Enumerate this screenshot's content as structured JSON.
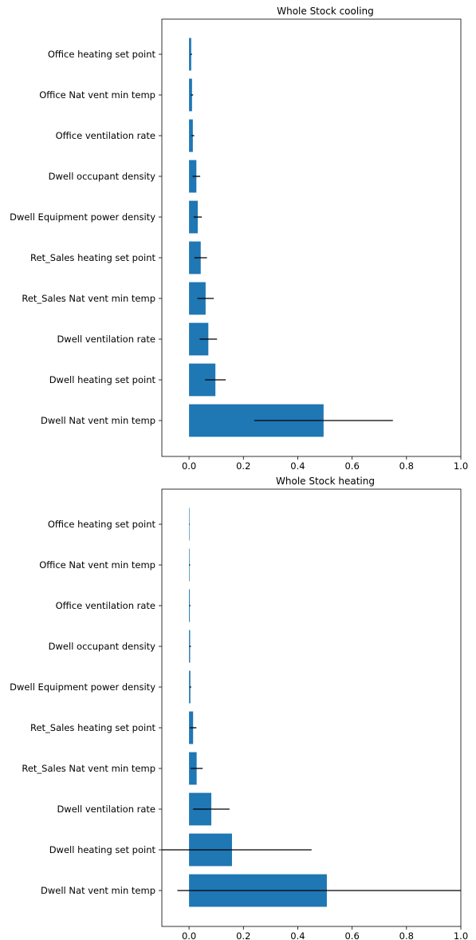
{
  "chart_data": [
    {
      "type": "bar",
      "orientation": "horizontal",
      "title": "Whole Stock cooling",
      "xlabel": "",
      "ylabel": "",
      "xlim": [
        -0.1,
        1.0
      ],
      "xticks": [
        "0.0",
        "0.2",
        "0.4",
        "0.6",
        "0.8",
        "1.0"
      ],
      "bar_color": "#1f77b4",
      "categories": [
        "Office heating set point",
        "Office Nat vent min temp",
        "Office ventilation rate",
        "Dwell occupant density",
        "Dwell Equipment power density",
        "Ret_Sales heating set point",
        "Ret_Sales Nat vent min temp",
        "Dwell ventilation rate",
        "Dwell heating set point",
        "Dwell Nat vent min temp"
      ],
      "values": [
        0.008,
        0.011,
        0.014,
        0.027,
        0.032,
        0.043,
        0.061,
        0.071,
        0.097,
        0.495
      ],
      "errors": [
        0.003,
        0.004,
        0.005,
        0.014,
        0.015,
        0.023,
        0.03,
        0.032,
        0.038,
        0.255
      ]
    },
    {
      "type": "bar",
      "orientation": "horizontal",
      "title": "Whole Stock heating",
      "xlabel": "",
      "ylabel": "",
      "xlim": [
        -0.1,
        1.0
      ],
      "xticks": [
        "0.0",
        "0.2",
        "0.4",
        "0.6",
        "0.8",
        "1.0"
      ],
      "bar_color": "#1f77b4",
      "categories": [
        "Office heating set point",
        "Office Nat vent min temp",
        "Office ventilation rate",
        "Dwell occupant density",
        "Dwell Equipment power density",
        "Ret_Sales heating set point",
        "Ret_Sales Nat vent min temp",
        "Dwell ventilation rate",
        "Dwell heating set point",
        "Dwell Nat vent min temp"
      ],
      "values": [
        0.001,
        0.002,
        0.003,
        0.004,
        0.005,
        0.015,
        0.028,
        0.082,
        0.158,
        0.507
      ],
      "errors": [
        0.001,
        0.002,
        0.002,
        0.003,
        0.003,
        0.012,
        0.022,
        0.067,
        0.293,
        0.55
      ]
    }
  ]
}
